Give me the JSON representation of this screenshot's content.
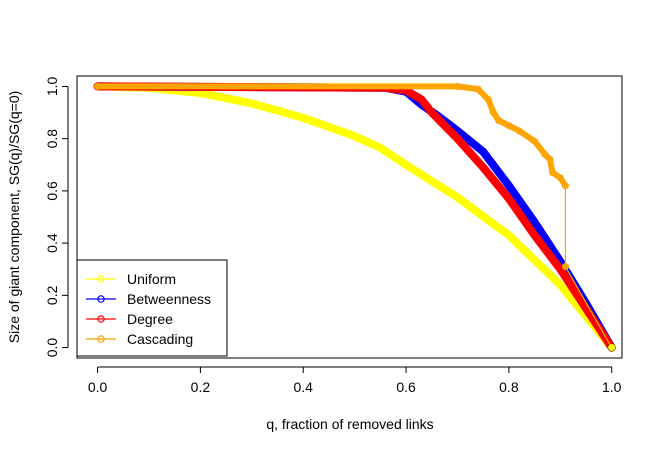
{
  "chart_data": {
    "type": "line",
    "title": "",
    "xlabel": "q, fraction of removed links",
    "ylabel": "Size of giant component, SG(q)/SG(q=0)",
    "xlim": [
      -0.04,
      1.02
    ],
    "ylim": [
      -0.04,
      1.04
    ],
    "xticks": [
      0.0,
      0.2,
      0.4,
      0.6,
      0.8,
      1.0
    ],
    "yticks": [
      0.0,
      0.2,
      0.4,
      0.6,
      0.8,
      1.0
    ],
    "xtick_labels": [
      "0.0",
      "0.2",
      "0.4",
      "0.6",
      "0.8",
      "1.0"
    ],
    "ytick_labels": [
      "0.0",
      "0.2",
      "0.4",
      "0.6",
      "0.8",
      "1.0"
    ],
    "grid": false,
    "legend": {
      "position": "bottom-left",
      "box": true
    },
    "series": [
      {
        "name": "Uniform",
        "color": "#FFFF00",
        "points": [
          [
            0.0,
            1.0
          ],
          [
            0.1,
            0.995
          ],
          [
            0.2,
            0.975
          ],
          [
            0.3,
            0.935
          ],
          [
            0.4,
            0.88
          ],
          [
            0.5,
            0.81
          ],
          [
            0.55,
            0.765
          ],
          [
            0.6,
            0.7
          ],
          [
            0.7,
            0.575
          ],
          [
            0.8,
            0.43
          ],
          [
            0.9,
            0.24
          ],
          [
            0.95,
            0.12
          ],
          [
            1.0,
            0.0
          ]
        ]
      },
      {
        "name": "Betweenness",
        "color": "#0000FF",
        "points": [
          [
            0.0,
            1.0
          ],
          [
            0.56,
            0.995
          ],
          [
            0.6,
            0.98
          ],
          [
            0.63,
            0.93
          ],
          [
            0.66,
            0.89
          ],
          [
            0.7,
            0.83
          ],
          [
            0.75,
            0.75
          ],
          [
            0.8,
            0.62
          ],
          [
            0.85,
            0.48
          ],
          [
            0.9,
            0.33
          ],
          [
            0.95,
            0.17
          ],
          [
            1.0,
            0.0
          ]
        ]
      },
      {
        "name": "Degree",
        "color": "#FF0000",
        "points": [
          [
            0.0,
            1.0
          ],
          [
            0.56,
            0.995
          ],
          [
            0.6,
            0.985
          ],
          [
            0.63,
            0.95
          ],
          [
            0.65,
            0.9
          ],
          [
            0.7,
            0.8
          ],
          [
            0.75,
            0.69
          ],
          [
            0.8,
            0.57
          ],
          [
            0.85,
            0.43
          ],
          [
            0.9,
            0.3
          ],
          [
            0.95,
            0.15
          ],
          [
            1.0,
            0.0
          ]
        ]
      },
      {
        "name": "Cascading",
        "color": "#FFA500",
        "points": [
          [
            0.0,
            1.0
          ],
          [
            0.7,
            1.0
          ],
          [
            0.74,
            0.99
          ],
          [
            0.76,
            0.95
          ],
          [
            0.77,
            0.9
          ],
          [
            0.78,
            0.87
          ],
          [
            0.8,
            0.85
          ],
          [
            0.82,
            0.83
          ],
          [
            0.85,
            0.79
          ],
          [
            0.87,
            0.74
          ],
          [
            0.88,
            0.72
          ],
          [
            0.885,
            0.67
          ],
          [
            0.9,
            0.65
          ],
          [
            0.91,
            0.62
          ],
          [
            0.91,
            0.31
          ],
          [
            1.0,
            0.0
          ]
        ]
      }
    ]
  }
}
